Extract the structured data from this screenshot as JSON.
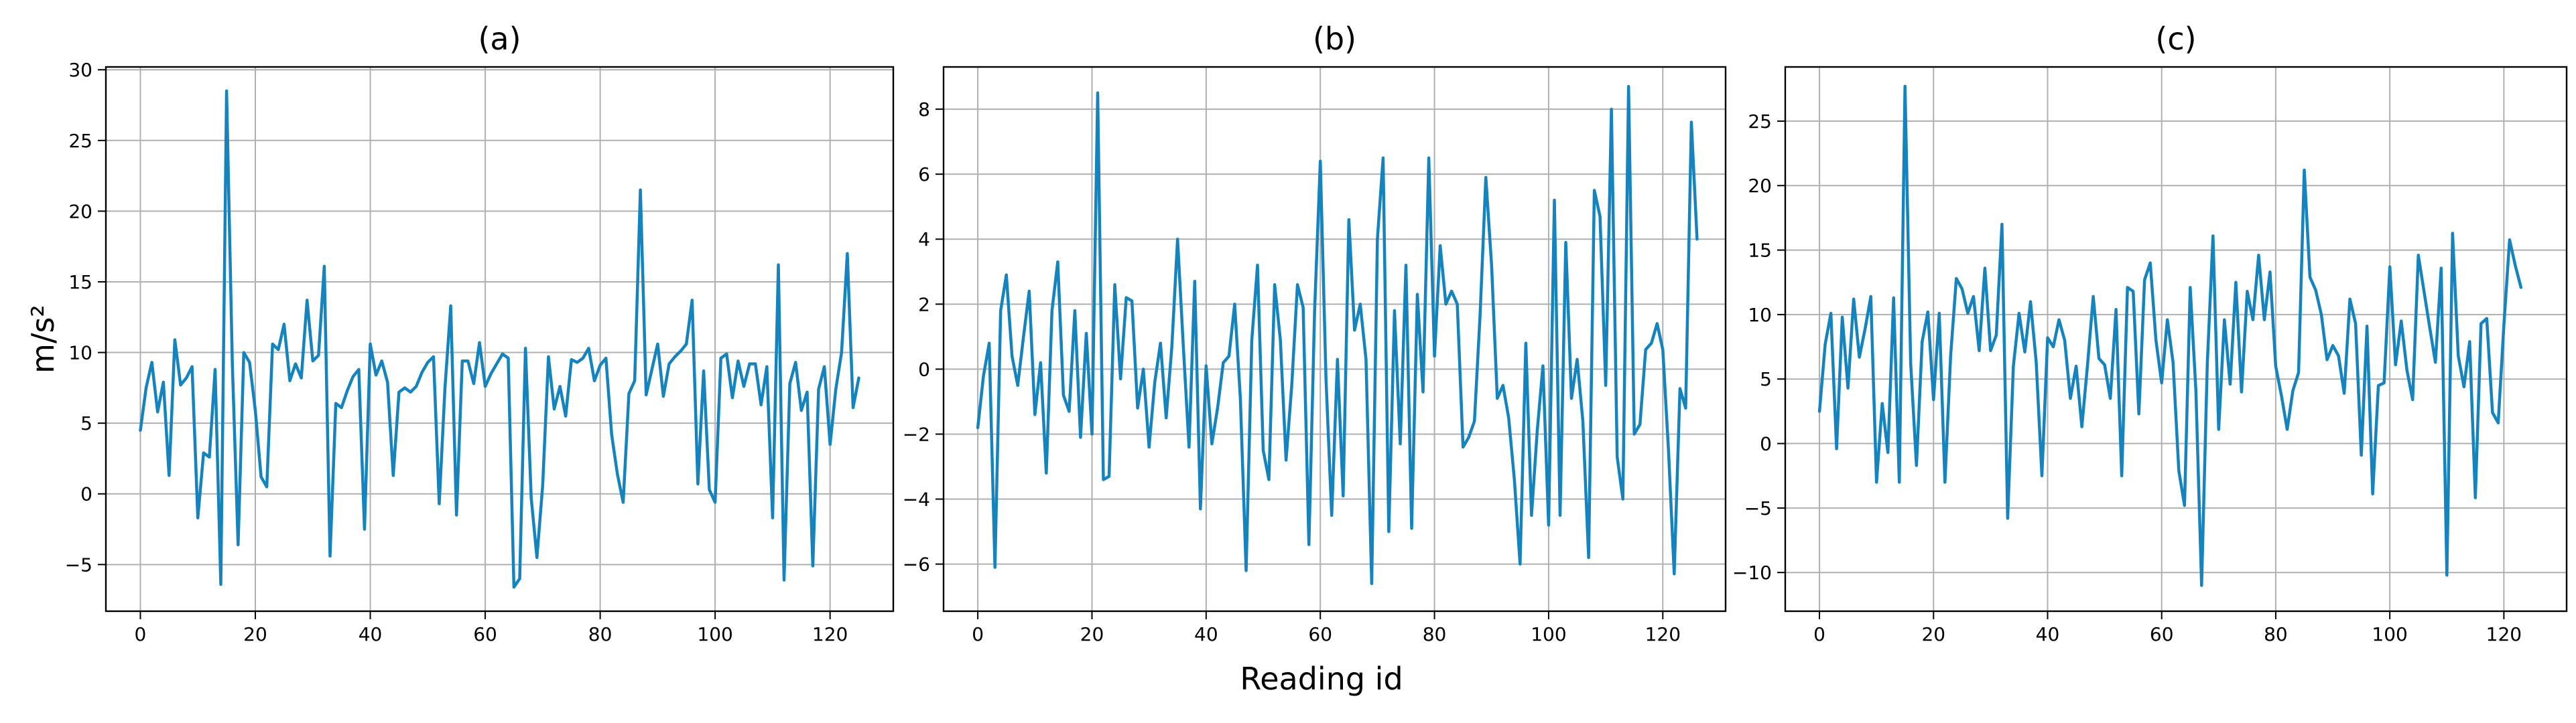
{
  "figure": {
    "xlabel": "Reading id"
  },
  "chart_data": [
    {
      "type": "line",
      "title": "(a)",
      "xlabel": "Reading id",
      "ylabel": "m/s²",
      "xlim": [
        -6,
        131
      ],
      "ylim": [
        -8.3,
        30.2
      ],
      "xticks": [
        0,
        20,
        40,
        60,
        80,
        100,
        120
      ],
      "yticks": [
        -5,
        0,
        5,
        10,
        15,
        20,
        25,
        30
      ],
      "grid": true,
      "color": "#1483be",
      "series": [
        {
          "x_start": 0,
          "x_step": 1,
          "values": [
            4.5,
            7.5,
            9.3,
            5.8,
            7.9,
            1.3,
            10.9,
            7.7,
            8.2,
            9,
            -1.7,
            2.9,
            2.6,
            8.8,
            -6.4,
            28.5,
            9.2,
            -3.6,
            10,
            9.3,
            5.9,
            1.2,
            0.5,
            10.6,
            10.2,
            12,
            8,
            9.2,
            8.2,
            13.7,
            9.4,
            9.8,
            16.1,
            -4.4,
            6.4,
            6.1,
            7.3,
            8.3,
            8.8,
            -2.5,
            10.6,
            8.4,
            9.4,
            7.9,
            1.3,
            7.2,
            7.5,
            7.2,
            7.6,
            8.6,
            9.3,
            9.7,
            -0.7,
            7.5,
            13.3,
            -1.5,
            9.4,
            9.4,
            7.8,
            10.7,
            7.6,
            8.5,
            9.2,
            9.9,
            9.6,
            -6.6,
            -6,
            10.3,
            -0.3,
            -4.5,
            0.6,
            9.7,
            6,
            7.6,
            5.5,
            9.5,
            9.3,
            9.6,
            10.3,
            8,
            9.1,
            9.6,
            4.2,
            1.4,
            -0.6,
            7.1,
            8,
            21.5,
            7,
            8.8,
            10.6,
            6.9,
            9.2,
            9.7,
            10.1,
            10.6,
            13.7,
            0.7,
            8.7,
            0.3,
            -0.6,
            9.6,
            9.9,
            6.8,
            9.4,
            7.6,
            9.2,
            9.2,
            6.3,
            9,
            -1.7,
            16.2,
            -6.1,
            7.8,
            9.3,
            5.9,
            7.2,
            -5.1,
            7.4,
            9,
            3.5,
            7.4,
            10,
            17,
            6.1,
            8.2
          ]
        }
      ]
    },
    {
      "type": "line",
      "title": "(b)",
      "xlabel": "Reading id",
      "ylabel": "",
      "xlim": [
        -6,
        131
      ],
      "ylim": [
        -7.45,
        9.3
      ],
      "xticks": [
        0,
        20,
        40,
        60,
        80,
        100,
        120
      ],
      "yticks": [
        -6,
        -4,
        -2,
        0,
        2,
        4,
        6,
        8
      ],
      "grid": true,
      "color": "#1483be",
      "series": [
        {
          "x_start": 0,
          "x_step": 1,
          "values": [
            -1.8,
            -0.2,
            0.8,
            -6.1,
            1.8,
            2.9,
            0.4,
            -0.5,
            1,
            2.4,
            -1.4,
            0.2,
            -3.2,
            1.8,
            3.3,
            -0.8,
            -1.3,
            1.8,
            -2.1,
            1.1,
            -2,
            8.5,
            -3.4,
            -3.3,
            2.6,
            -0.3,
            2.2,
            2.1,
            -1.2,
            0,
            -2.4,
            -0.4,
            0.8,
            -1.5,
            0.7,
            4,
            0.7,
            -2.4,
            2.7,
            -4.3,
            0.1,
            -2.3,
            -1.2,
            0.2,
            0.4,
            2,
            -0.9,
            -6.2,
            0.9,
            3.2,
            -2.5,
            -3.4,
            2.6,
            0.9,
            -2.8,
            -0.5,
            2.6,
            1.9,
            -5.4,
            1.8,
            6.4,
            -0.3,
            -4.5,
            0.3,
            -3.9,
            4.6,
            1.2,
            2,
            0.3,
            -6.6,
            4,
            6.5,
            -5,
            1.8,
            -2.3,
            3.2,
            -4.9,
            2.3,
            -0.7,
            6.5,
            0.4,
            3.8,
            2,
            2.4,
            2,
            -2.4,
            -2.1,
            -1.6,
            1.7,
            5.9,
            3.2,
            -0.9,
            -0.5,
            -1.5,
            -3.4,
            -6,
            0.8,
            -4.5,
            -1.9,
            0.1,
            -4.8,
            5.2,
            -4.5,
            3.9,
            -0.9,
            0.3,
            -1.6,
            -5.8,
            5.5,
            4.7,
            -0.5,
            8,
            -2.7,
            -4,
            8.7,
            -2,
            -1.7,
            0.6,
            0.8,
            1.4,
            0.6,
            -2.5,
            -6.3,
            -0.6,
            -1.2,
            7.6,
            4
          ]
        }
      ]
    },
    {
      "type": "line",
      "title": "(c)",
      "xlabel": "Reading id",
      "ylabel": "",
      "xlim": [
        -6,
        131
      ],
      "ylim": [
        -13,
        29.2
      ],
      "xticks": [
        0,
        20,
        40,
        60,
        80,
        100,
        120
      ],
      "yticks": [
        -10,
        -5,
        0,
        5,
        10,
        15,
        20,
        25
      ],
      "grid": true,
      "color": "#1483be",
      "series": [
        {
          "x_start": 0,
          "x_step": 1,
          "values": [
            2.5,
            7.7,
            10.1,
            -0.4,
            9.8,
            4.3,
            11.2,
            6.7,
            8.9,
            11.4,
            -3,
            3.1,
            -0.7,
            11.3,
            -3,
            27.7,
            6.2,
            -1.7,
            7.9,
            10.2,
            3.4,
            10.1,
            -3,
            6.8,
            12.8,
            12,
            10.1,
            11.4,
            7.2,
            13.6,
            7.2,
            8.4,
            17,
            -5.8,
            6,
            10.1,
            7.1,
            11,
            6.3,
            -2.5,
            8.2,
            7.5,
            9.6,
            8,
            3.5,
            6,
            1.3,
            6.1,
            11.4,
            6.6,
            6.1,
            3.5,
            10.4,
            -2.5,
            12.1,
            11.8,
            2.3,
            12.7,
            14,
            8,
            4.7,
            9.6,
            6.3,
            -2.1,
            -4.8,
            12.1,
            4.1,
            -11,
            6.2,
            16.1,
            1.1,
            9.6,
            4.6,
            12.5,
            4,
            11.8,
            9.6,
            14.6,
            9.6,
            13.3,
            6,
            3.7,
            1.1,
            4.1,
            5.5,
            21.2,
            12.9,
            11.9,
            10,
            6.5,
            7.6,
            6.8,
            3.9,
            11.2,
            9.3,
            -0.9,
            9.1,
            -3.9,
            4.5,
            4.7,
            13.7,
            6.1,
            9.5,
            5.7,
            3.4,
            14.6,
            11.8,
            9,
            6.3,
            13.6,
            -10.2,
            16.3,
            6.8,
            4.4,
            7.9,
            -4.2,
            9.3,
            9.7,
            2.4,
            1.6,
            9.2,
            15.8,
            13.8,
            12.1
          ]
        }
      ]
    }
  ]
}
